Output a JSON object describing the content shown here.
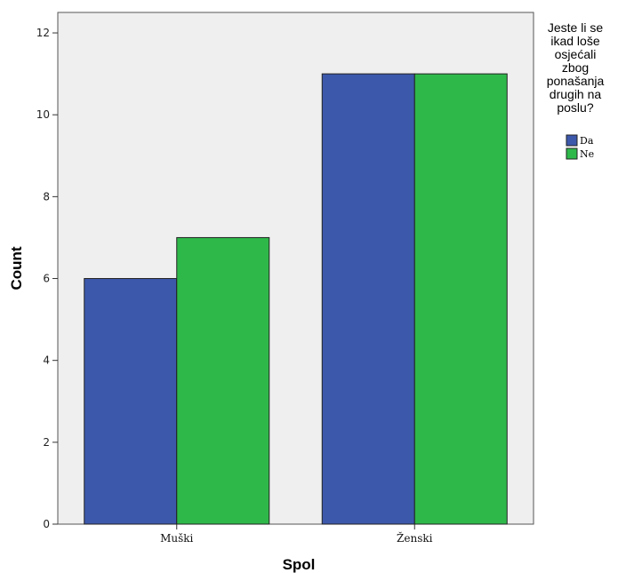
{
  "chart_data": {
    "type": "bar",
    "xlabel": "Spol",
    "ylabel": "Count",
    "ylim": [
      0,
      12.5
    ],
    "yticks": [
      0,
      2,
      4,
      6,
      8,
      10,
      12
    ],
    "categories": [
      "Muški",
      "Ženski"
    ],
    "series": [
      {
        "name": "Da",
        "values": [
          6,
          11
        ],
        "color": "#3c58ab"
      },
      {
        "name": "Ne",
        "values": [
          7,
          11
        ],
        "color": "#2fb84a"
      }
    ],
    "legend": {
      "title_lines": [
        "Jeste li se",
        "ikad loše",
        "osjećali",
        "zbog",
        "ponašanja",
        "drugih na",
        "poslu?"
      ],
      "placement": "right"
    },
    "grid": false,
    "plot_background": "#efefef"
  }
}
